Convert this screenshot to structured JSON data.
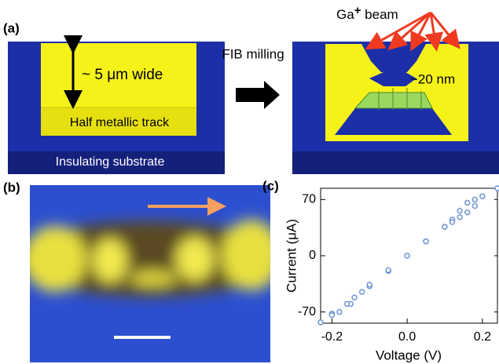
{
  "panel_a": {
    "label": "(a)",
    "width_label": "~ 5 μm wide",
    "track_label": "Half metallic track",
    "substrate_label": "Insulating substrate",
    "process_label": "FIB milling",
    "beam_label": {
      "base": "Ga",
      "sup": "+",
      "rest": " beam"
    },
    "gap_label": "~20 nm"
  },
  "panel_b": {
    "label": "(b)"
  },
  "panel_c": {
    "label": "(c)"
  },
  "chart_data": {
    "type": "scatter",
    "x_label": "Voltage (V)",
    "y_label": "Current (μA)",
    "xlim": [
      -0.23,
      0.24
    ],
    "ylim": [
      -84,
      84
    ],
    "xticks": [
      -0.2,
      {
        "value": 0,
        "label": "0.0"
      },
      0.2
    ],
    "yticks": [
      -70,
      0,
      70
    ],
    "series": [
      {
        "color": "#6f95d6",
        "x": [
          -0.23,
          -0.2,
          -0.15,
          -0.1,
          -0.05,
          0,
          0.05,
          0.1,
          0.12,
          0.14,
          0.16,
          0.18,
          0.2,
          0.24
        ],
        "values": [
          -83,
          -72,
          -60,
          -38,
          -19,
          0,
          18,
          36,
          45,
          56,
          66,
          70,
          74,
          84
        ]
      },
      {
        "color": "#6f95d6",
        "x": [
          0.24,
          0.2,
          0.18,
          0.16,
          0.14,
          0.12,
          0.1,
          0.05,
          0,
          -0.05,
          -0.1,
          -0.12,
          -0.14,
          -0.16,
          -0.18,
          -0.2,
          -0.23
        ],
        "values": [
          84,
          74,
          62,
          54,
          48,
          42,
          36,
          18,
          0,
          -18,
          -36,
          -45,
          -52,
          -60,
          -70,
          -74,
          -83
        ]
      }
    ]
  }
}
